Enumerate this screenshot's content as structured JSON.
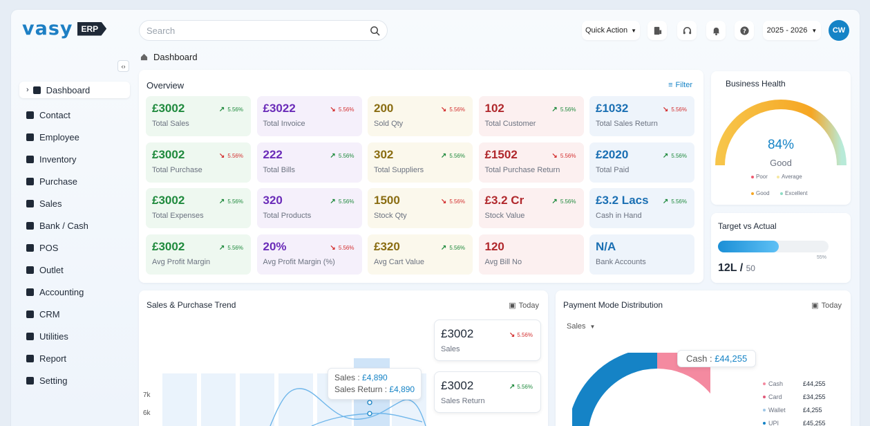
{
  "brand": {
    "name": "vasy",
    "badge": "ERP"
  },
  "search": {
    "placeholder": "Search"
  },
  "topbar": {
    "quick_action": "Quick Action",
    "year": "2025 - 2026",
    "avatar": "CW"
  },
  "breadcrumb": {
    "label": "Dashboard"
  },
  "sidebar": {
    "items": [
      {
        "label": "Dashboard",
        "icon": "grid-icon"
      },
      {
        "label": "Contact",
        "icon": "contact-icon"
      },
      {
        "label": "Employee",
        "icon": "id-card-icon"
      },
      {
        "label": "Inventory",
        "icon": "box-icon"
      },
      {
        "label": "Purchase",
        "icon": "cart-icon"
      },
      {
        "label": "Sales",
        "icon": "sales-icon"
      },
      {
        "label": "Bank / Cash",
        "icon": "bank-icon"
      },
      {
        "label": "POS",
        "icon": "pos-icon"
      },
      {
        "label": "Outlet",
        "icon": "outlet-icon"
      },
      {
        "label": "Accounting",
        "icon": "accounting-icon"
      },
      {
        "label": "CRM",
        "icon": "crm-icon"
      },
      {
        "label": "Utilities",
        "icon": "file-icon"
      },
      {
        "label": "Report",
        "icon": "bar-chart-icon"
      },
      {
        "label": "Setting",
        "icon": "gear-icon"
      }
    ]
  },
  "overview": {
    "title": "Overview",
    "filter": "Filter",
    "tiles": [
      {
        "value": "£3002",
        "label": "Total Sales",
        "change": "5.56%",
        "dir": "up",
        "color": "#1f8a3d",
        "bg": "#eef8f0"
      },
      {
        "value": "£3022",
        "label": "Total Invoice",
        "change": "5.56%",
        "dir": "down",
        "color": "#6a2bb8",
        "bg": "#f5f0fb"
      },
      {
        "value": "200",
        "label": "Sold Qty",
        "change": "5.56%",
        "dir": "down",
        "color": "#8a6d12",
        "bg": "#fbf8ec"
      },
      {
        "value": "102",
        "label": "Total Customer",
        "change": "5.56%",
        "dir": "up",
        "color": "#b0282c",
        "bg": "#fcf0f0"
      },
      {
        "value": "£1032",
        "label": "Total Sales Return",
        "change": "5.56%",
        "dir": "down",
        "color": "#1a6fb3",
        "bg": "#eef4fb"
      },
      {
        "value": "£3002",
        "label": "Total Purchase",
        "change": "5.56%",
        "dir": "down",
        "color": "#1f8a3d",
        "bg": "#eef8f0"
      },
      {
        "value": "222",
        "label": "Total Bills",
        "change": "5.56%",
        "dir": "up",
        "color": "#6a2bb8",
        "bg": "#f5f0fb"
      },
      {
        "value": "302",
        "label": "Total Suppliers",
        "change": "5.56%",
        "dir": "up",
        "color": "#8a6d12",
        "bg": "#fbf8ec"
      },
      {
        "value": "£1502",
        "label": "Total Purchase Return",
        "change": "5.56%",
        "dir": "down",
        "color": "#b0282c",
        "bg": "#fcf0f0"
      },
      {
        "value": "£2020",
        "label": "Total Paid",
        "change": "5.56%",
        "dir": "up",
        "color": "#1a6fb3",
        "bg": "#eef4fb"
      },
      {
        "value": "£3002",
        "label": "Total Expenses",
        "change": "5.56%",
        "dir": "up",
        "color": "#1f8a3d",
        "bg": "#eef8f0"
      },
      {
        "value": "320",
        "label": "Total Products",
        "change": "5.56%",
        "dir": "up",
        "color": "#6a2bb8",
        "bg": "#f5f0fb"
      },
      {
        "value": "1500",
        "label": "Stock Qty",
        "change": "5.56%",
        "dir": "down",
        "color": "#8a6d12",
        "bg": "#fbf8ec"
      },
      {
        "value": "£3.2 Cr",
        "label": "Stock Value",
        "change": "5.56%",
        "dir": "up",
        "color": "#b0282c",
        "bg": "#fcf0f0"
      },
      {
        "value": "£3.2 Lacs",
        "label": "Cash in Hand",
        "change": "5.56%",
        "dir": "up",
        "color": "#1a6fb3",
        "bg": "#eef4fb"
      },
      {
        "value": "£3002",
        "label": "Avg Profit Margin",
        "change": "5.56%",
        "dir": "up",
        "color": "#1f8a3d",
        "bg": "#eef8f0"
      },
      {
        "value": "20%",
        "label": "Avg Profit Margin (%)",
        "change": "5.56%",
        "dir": "down",
        "color": "#6a2bb8",
        "bg": "#f5f0fb"
      },
      {
        "value": "£320",
        "label": "Avg Cart Value",
        "change": "5.56%",
        "dir": "up",
        "color": "#8a6d12",
        "bg": "#fbf8ec"
      },
      {
        "value": "120",
        "label": "Avg Bill No",
        "change": "",
        "dir": "",
        "color": "#b0282c",
        "bg": "#fcf0f0"
      },
      {
        "value": "N/A",
        "label": "Bank Accounts",
        "change": "",
        "dir": "",
        "color": "#1a6fb3",
        "bg": "#eef4fb"
      }
    ]
  },
  "business_health": {
    "title": "Business Health",
    "percent": "84%",
    "status": "Good",
    "level": 0.84,
    "legend": [
      {
        "label": "Poor",
        "color": "#ef5a6f"
      },
      {
        "label": "Average",
        "color": "#f6e7a1"
      },
      {
        "label": "Good",
        "color": "#f6a623"
      },
      {
        "label": "Excellent",
        "color": "#8edbc4"
      }
    ]
  },
  "target": {
    "title": "Target vs Actual",
    "percent": "55%",
    "progress": 0.55,
    "actual": "12L /",
    "target": "50"
  },
  "trend": {
    "title": "Sales & Purchase Trend",
    "period": "Today",
    "y_ticks": [
      "7k",
      "6k"
    ],
    "tooltip_sales_label": "Sales :",
    "tooltip_sales": "£4,890",
    "tooltip_return_label": "Sales Return :",
    "tooltip_return": "£4,890",
    "mini": [
      {
        "value": "£3002",
        "label": "Sales",
        "change": "5.56%",
        "dir": "down"
      },
      {
        "value": "£3002",
        "label": "Sales Return",
        "change": "5.56%",
        "dir": "up"
      }
    ]
  },
  "payment": {
    "title": "Payment Mode Distribution",
    "period": "Today",
    "select": "Sales",
    "tooltip_label": "Cash :",
    "tooltip_value": "£44,255",
    "legend": [
      {
        "label": "Cash",
        "amount": "£44,255",
        "color": "#f48aa0"
      },
      {
        "label": "Card",
        "amount": "£34,255",
        "color": "#e05a7a"
      },
      {
        "label": "Wallet",
        "amount": "£4,255",
        "color": "#9fc7e6"
      },
      {
        "label": "UPI",
        "amount": "£45,255",
        "color": "#1583c6"
      }
    ]
  }
}
